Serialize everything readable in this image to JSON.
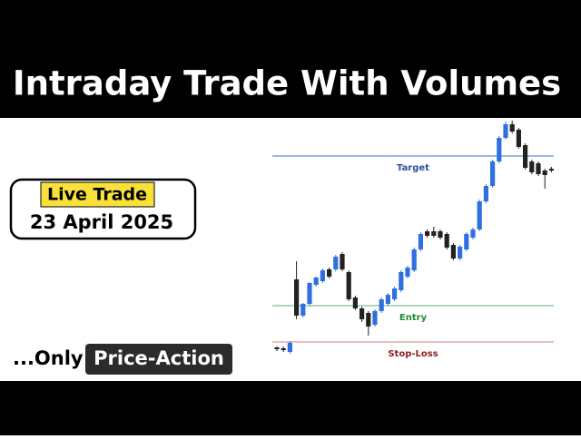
{
  "header": {
    "title": "Intraday Trade With Volumes"
  },
  "badge": {
    "label": "Live Trade",
    "date": "23 April 2025"
  },
  "footer": {
    "prefix": "...Only",
    "highlight": "Price-Action"
  },
  "chart_data": {
    "type": "candlestick",
    "up_color": "#2f6fe0",
    "down_color": "#222222",
    "open": [
      17,
      16,
      12,
      92,
      52,
      65,
      86,
      90,
      103,
      103,
      120,
      100,
      72,
      60,
      55,
      42,
      57,
      65,
      70,
      80,
      95,
      102,
      125,
      145,
      145,
      145,
      142,
      130,
      115,
      125,
      138,
      147,
      178,
      195,
      222,
      248,
      263,
      257,
      240,
      222,
      220,
      212,
      214
    ],
    "close": [
      15,
      14,
      22,
      52,
      65,
      88,
      94,
      102,
      95,
      117,
      103,
      70,
      60,
      48,
      40,
      57,
      70,
      75,
      82,
      100,
      105,
      125,
      142,
      140,
      140,
      138,
      127,
      115,
      128,
      142,
      147,
      178,
      195,
      222,
      248,
      263,
      255,
      238,
      215,
      210,
      208,
      207,
      212
    ],
    "high": [
      18,
      18,
      24,
      112,
      66,
      89,
      95,
      104,
      105,
      119,
      122,
      102,
      74,
      62,
      57,
      59,
      72,
      77,
      84,
      102,
      107,
      127,
      144,
      147,
      150,
      147,
      144,
      132,
      130,
      144,
      149,
      180,
      197,
      224,
      250,
      266,
      267,
      259,
      242,
      224,
      222,
      214,
      216
    ],
    "low": [
      13,
      12,
      10,
      48,
      50,
      63,
      84,
      88,
      93,
      101,
      101,
      68,
      58,
      45,
      30,
      40,
      55,
      63,
      68,
      78,
      93,
      100,
      123,
      138,
      138,
      136,
      125,
      113,
      113,
      123,
      136,
      145,
      176,
      193,
      220,
      246,
      253,
      236,
      213,
      208,
      206,
      192,
      210
    ],
    "levels": [
      {
        "label": "Target",
        "value": 228,
        "color": "#5b8fd6",
        "text_color": "#2c4f9e"
      },
      {
        "label": "Entry",
        "value": 63,
        "color": "#7fbf8f",
        "text_color": "#1f8a3a"
      },
      {
        "label": "Stop-Loss",
        "value": 23,
        "color": "#d99a9a",
        "text_color": "#8a1f1f"
      }
    ]
  }
}
